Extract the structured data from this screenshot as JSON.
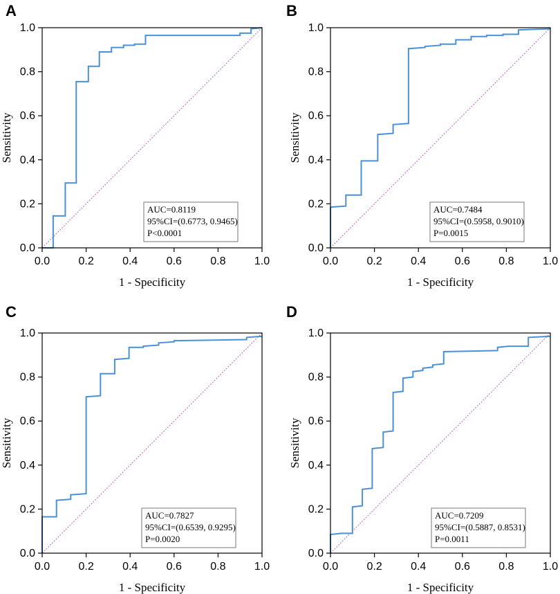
{
  "chart_data": [
    {
      "panel": "A",
      "type": "line",
      "xlabel": "1 - Specificity",
      "ylabel": "Sensitivity",
      "xlim": [
        0,
        1
      ],
      "ylim": [
        0,
        1
      ],
      "xticks": [
        "0.0",
        "0.2",
        "0.4",
        "0.6",
        "0.8",
        "1.0"
      ],
      "yticks": [
        "0.0",
        "0.2",
        "0.4",
        "0.6",
        "0.8",
        "1.0"
      ],
      "reference_line": true,
      "series": [
        {
          "name": "ROC",
          "points": [
            [
              0,
              0
            ],
            [
              0.05,
              0
            ],
            [
              0.05,
              0.145
            ],
            [
              0.105,
              0.145
            ],
            [
              0.105,
              0.295
            ],
            [
              0.155,
              0.295
            ],
            [
              0.155,
              0.755
            ],
            [
              0.21,
              0.755
            ],
            [
              0.21,
              0.825
            ],
            [
              0.26,
              0.825
            ],
            [
              0.26,
              0.89
            ],
            [
              0.315,
              0.89
            ],
            [
              0.315,
              0.91
            ],
            [
              0.37,
              0.91
            ],
            [
              0.37,
              0.92
            ],
            [
              0.42,
              0.92
            ],
            [
              0.42,
              0.925
            ],
            [
              0.47,
              0.925
            ],
            [
              0.47,
              0.965
            ],
            [
              0.9,
              0.965
            ],
            [
              0.9,
              0.975
            ],
            [
              0.95,
              0.975
            ],
            [
              0.95,
              0.995
            ],
            [
              1.0,
              1.0
            ]
          ]
        }
      ],
      "stats": {
        "auc": "AUC=0.8119",
        "ci": "95%CI=(0.6773, 0.9465)",
        "p": "P<0.0001"
      },
      "stats_position": "bottom-right"
    },
    {
      "panel": "B",
      "type": "line",
      "xlabel": "1 - Specificity",
      "ylabel": "Sensitivity",
      "xlim": [
        0,
        1
      ],
      "ylim": [
        0,
        1
      ],
      "xticks": [
        "0.0",
        "0.2",
        "0.4",
        "0.6",
        "0.8",
        "1.0"
      ],
      "yticks": [
        "0.0",
        "0.2",
        "0.4",
        "0.6",
        "0.8",
        "1.0"
      ],
      "reference_line": true,
      "series": [
        {
          "name": "ROC",
          "points": [
            [
              0,
              0
            ],
            [
              0,
              0.185
            ],
            [
              0.07,
              0.19
            ],
            [
              0.07,
              0.24
            ],
            [
              0.14,
              0.24
            ],
            [
              0.14,
              0.395
            ],
            [
              0.215,
              0.395
            ],
            [
              0.215,
              0.515
            ],
            [
              0.285,
              0.52
            ],
            [
              0.285,
              0.56
            ],
            [
              0.355,
              0.565
            ],
            [
              0.355,
              0.905
            ],
            [
              0.43,
              0.91
            ],
            [
              0.43,
              0.915
            ],
            [
              0.5,
              0.92
            ],
            [
              0.5,
              0.925
            ],
            [
              0.57,
              0.925
            ],
            [
              0.57,
              0.945
            ],
            [
              0.64,
              0.945
            ],
            [
              0.64,
              0.96
            ],
            [
              0.71,
              0.96
            ],
            [
              0.71,
              0.965
            ],
            [
              0.785,
              0.965
            ],
            [
              0.785,
              0.97
            ],
            [
              0.855,
              0.97
            ],
            [
              0.855,
              0.99
            ],
            [
              1.0,
              0.995
            ]
          ]
        }
      ],
      "stats": {
        "auc": "AUC=0.7484",
        "ci": "95%CI=(0.5958, 0.9010)",
        "p": "P=0.0015"
      },
      "stats_position": "bottom-right"
    },
    {
      "panel": "C",
      "type": "line",
      "xlabel": "1 - Specificity",
      "ylabel": "Sensitivity",
      "xlim": [
        0,
        1
      ],
      "ylim": [
        0,
        1
      ],
      "xticks": [
        "0.0",
        "0.2",
        "0.4",
        "0.6",
        "0.8",
        "1.0"
      ],
      "yticks": [
        "0.0",
        "0.2",
        "0.4",
        "0.6",
        "0.8",
        "1.0"
      ],
      "reference_line": true,
      "series": [
        {
          "name": "ROC",
          "points": [
            [
              0,
              0
            ],
            [
              0,
              0.165
            ],
            [
              0.065,
              0.165
            ],
            [
              0.065,
              0.24
            ],
            [
              0.13,
              0.245
            ],
            [
              0.13,
              0.265
            ],
            [
              0.2,
              0.27
            ],
            [
              0.2,
              0.71
            ],
            [
              0.265,
              0.715
            ],
            [
              0.265,
              0.815
            ],
            [
              0.33,
              0.815
            ],
            [
              0.33,
              0.88
            ],
            [
              0.395,
              0.885
            ],
            [
              0.395,
              0.935
            ],
            [
              0.46,
              0.935
            ],
            [
              0.46,
              0.94
            ],
            [
              0.53,
              0.945
            ],
            [
              0.53,
              0.955
            ],
            [
              0.6,
              0.96
            ],
            [
              0.6,
              0.965
            ],
            [
              0.93,
              0.97
            ],
            [
              0.93,
              0.98
            ],
            [
              1.0,
              0.985
            ]
          ]
        }
      ],
      "stats": {
        "auc": "AUC=0.7827",
        "ci": "95%CI=(0.6539, 0.9295)",
        "p": "P=0.0020"
      },
      "stats_position": "bottom-right"
    },
    {
      "panel": "D",
      "type": "line",
      "xlabel": "1 - Specificity",
      "ylabel": "Sensitivity",
      "xlim": [
        0,
        1
      ],
      "ylim": [
        0,
        1
      ],
      "xticks": [
        "0.0",
        "0.2",
        "0.4",
        "0.6",
        "0.8",
        "1.0"
      ],
      "yticks": [
        "0.0",
        "0.2",
        "0.4",
        "0.6",
        "0.8",
        "1.0"
      ],
      "reference_line": true,
      "series": [
        {
          "name": "ROC",
          "points": [
            [
              0,
              0
            ],
            [
              0,
              0.085
            ],
            [
              0.05,
              0.09
            ],
            [
              0.1,
              0.09
            ],
            [
              0.1,
              0.21
            ],
            [
              0.145,
              0.215
            ],
            [
              0.145,
              0.29
            ],
            [
              0.19,
              0.295
            ],
            [
              0.19,
              0.475
            ],
            [
              0.24,
              0.48
            ],
            [
              0.24,
              0.55
            ],
            [
              0.285,
              0.555
            ],
            [
              0.285,
              0.73
            ],
            [
              0.33,
              0.735
            ],
            [
              0.33,
              0.795
            ],
            [
              0.375,
              0.8
            ],
            [
              0.375,
              0.825
            ],
            [
              0.42,
              0.83
            ],
            [
              0.42,
              0.84
            ],
            [
              0.465,
              0.845
            ],
            [
              0.465,
              0.855
            ],
            [
              0.515,
              0.86
            ],
            [
              0.515,
              0.915
            ],
            [
              0.76,
              0.92
            ],
            [
              0.76,
              0.935
            ],
            [
              0.81,
              0.94
            ],
            [
              0.9,
              0.94
            ],
            [
              0.9,
              0.98
            ],
            [
              1.0,
              0.985
            ]
          ]
        }
      ],
      "stats": {
        "auc": "AUC=0.7209",
        "ci": "95%CI=(0.5887, 0.8531)",
        "p": "P=0.0011"
      },
      "stats_position": "bottom-right"
    }
  ],
  "colors": {
    "roc_line": "#4a90d9",
    "reference_line": "#c05ec8",
    "axis": "#000000"
  }
}
